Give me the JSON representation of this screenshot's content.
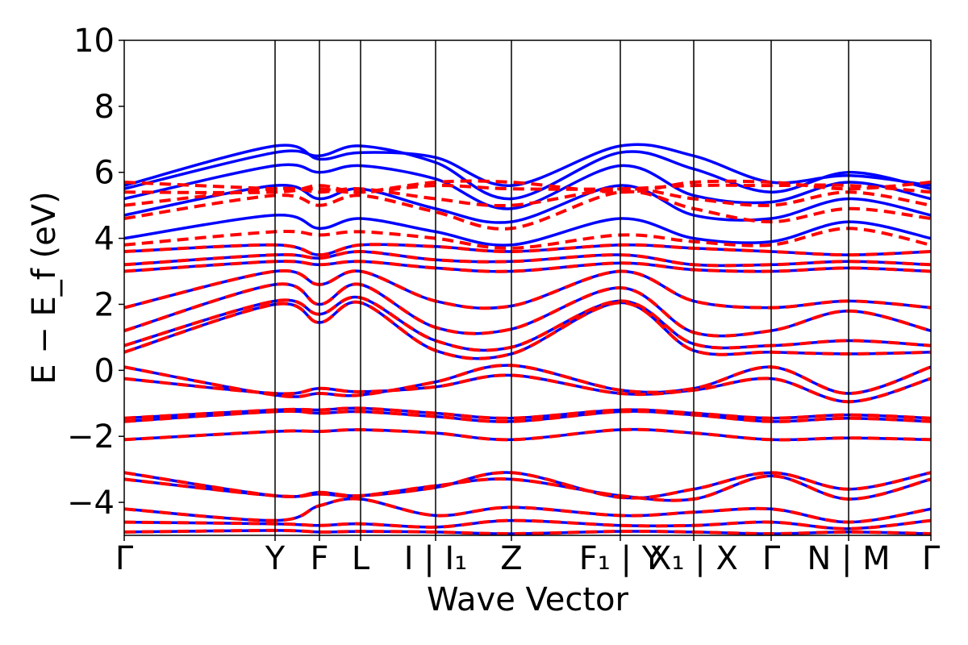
{
  "chart_data": {
    "type": "line",
    "title": "",
    "xlabel": "Wave Vector",
    "ylabel": "E − E_f (eV)",
    "ylim": [
      -5,
      10
    ],
    "grid": false,
    "legend": "none",
    "y_ticks": [
      {
        "value": 10,
        "label": "10"
      },
      {
        "value": 8,
        "label": "8"
      },
      {
        "value": 6,
        "label": "6"
      },
      {
        "value": 4,
        "label": "4"
      },
      {
        "value": 2,
        "label": "2"
      },
      {
        "value": 0,
        "label": "0"
      },
      {
        "value": -2,
        "label": "−2"
      },
      {
        "value": -4,
        "label": "−4"
      }
    ],
    "k_path": [
      {
        "k": 0.0,
        "label": "Γ"
      },
      {
        "k": 1.87,
        "label": "Y"
      },
      {
        "k": 2.42,
        "label": "F"
      },
      {
        "k": 2.93,
        "label": "L"
      },
      {
        "k": 3.86,
        "label": "I | I₁"
      },
      {
        "k": 4.8,
        "label": "Z"
      },
      {
        "k": 6.15,
        "label": "F₁ | Y"
      },
      {
        "k": 7.06,
        "label": "X₁ | X"
      },
      {
        "k": 8.02,
        "label": "Γ"
      },
      {
        "k": 8.98,
        "label": "N | M"
      },
      {
        "k": 10.0,
        "label": "Γ"
      }
    ],
    "colors": {
      "reference": "#0000ff",
      "model": "#ff0000",
      "axis": "#000000"
    },
    "series": [
      {
        "style": "solid",
        "color": "#0000ff",
        "bands": [
          [
            -4.9,
            -4.85,
            -4.9,
            -4.88,
            -4.9,
            -4.95,
            -4.88,
            -4.9,
            -4.95,
            -4.9,
            -4.95
          ],
          [
            -4.6,
            -4.65,
            -4.7,
            -4.65,
            -4.75,
            -4.55,
            -4.7,
            -4.7,
            -4.6,
            -4.8,
            -4.55
          ],
          [
            -4.2,
            -4.55,
            -4.1,
            -3.9,
            -4.4,
            -4.15,
            -4.4,
            -4.3,
            -4.2,
            -4.6,
            -4.2
          ],
          [
            -3.3,
            -3.8,
            -3.75,
            -3.8,
            -3.5,
            -3.3,
            -3.8,
            -3.9,
            -3.2,
            -3.9,
            -3.3
          ],
          [
            -3.1,
            -3.8,
            -3.7,
            -3.8,
            -3.55,
            -3.1,
            -3.85,
            -3.6,
            -3.1,
            -3.6,
            -3.1
          ],
          [
            -2.1,
            -1.85,
            -1.85,
            -1.8,
            -1.9,
            -2.1,
            -1.8,
            -1.9,
            -2.1,
            -2.05,
            -2.1
          ],
          [
            -1.55,
            -1.25,
            -1.3,
            -1.25,
            -1.4,
            -1.55,
            -1.25,
            -1.35,
            -1.55,
            -1.45,
            -1.55
          ],
          [
            -1.45,
            -1.2,
            -1.2,
            -1.15,
            -1.3,
            -1.45,
            -1.2,
            -1.3,
            -1.45,
            -1.35,
            -1.45
          ],
          [
            -0.25,
            -0.7,
            -0.55,
            -0.65,
            -0.5,
            -0.15,
            -0.7,
            -0.6,
            -0.25,
            -0.95,
            -0.25
          ],
          [
            0.1,
            -0.75,
            -0.7,
            -0.75,
            -0.35,
            0.15,
            -0.6,
            -0.55,
            0.1,
            -0.7,
            0.1
          ],
          [
            0.55,
            2.0,
            1.45,
            2.05,
            0.6,
            0.5,
            2.05,
            0.6,
            0.55,
            0.5,
            0.55
          ],
          [
            0.75,
            2.1,
            1.7,
            2.2,
            0.9,
            0.7,
            2.1,
            0.8,
            0.75,
            0.9,
            0.75
          ],
          [
            1.2,
            2.6,
            2.0,
            2.6,
            1.3,
            1.25,
            2.5,
            1.15,
            1.2,
            1.8,
            1.2
          ],
          [
            1.9,
            3.0,
            2.6,
            3.0,
            2.1,
            1.95,
            3.0,
            2.1,
            1.9,
            2.1,
            1.9
          ],
          [
            3.0,
            3.3,
            3.2,
            3.3,
            3.1,
            3.0,
            3.25,
            3.05,
            3.0,
            3.1,
            3.0
          ],
          [
            3.2,
            3.5,
            3.4,
            3.6,
            3.35,
            3.3,
            3.5,
            3.2,
            3.2,
            3.3,
            3.2
          ],
          [
            3.6,
            3.8,
            3.5,
            3.8,
            3.75,
            3.6,
            3.8,
            3.7,
            3.6,
            3.5,
            3.6
          ],
          [
            4.0,
            4.7,
            4.3,
            4.6,
            4.2,
            3.8,
            4.6,
            4.0,
            3.9,
            4.5,
            4.0
          ],
          [
            4.7,
            5.6,
            5.2,
            5.5,
            4.9,
            4.5,
            5.6,
            4.7,
            4.6,
            5.2,
            4.7
          ],
          [
            5.2,
            6.2,
            6.0,
            6.2,
            5.8,
            4.9,
            6.2,
            5.3,
            5.1,
            5.7,
            5.2
          ],
          [
            5.5,
            6.6,
            6.5,
            6.8,
            6.3,
            5.2,
            6.6,
            6.1,
            5.4,
            6.0,
            5.5
          ],
          [
            5.6,
            6.8,
            6.4,
            6.6,
            6.45,
            5.6,
            6.8,
            6.5,
            5.7,
            5.9,
            5.6
          ]
        ]
      },
      {
        "style": "dashed",
        "color": "#ff0000",
        "bands": [
          [
            -4.9,
            -4.85,
            -4.9,
            -4.88,
            -4.9,
            -4.95,
            -4.88,
            -4.9,
            -4.95,
            -4.9,
            -4.95
          ],
          [
            -4.6,
            -4.65,
            -4.7,
            -4.65,
            -4.75,
            -4.55,
            -4.7,
            -4.7,
            -4.6,
            -4.8,
            -4.55
          ],
          [
            -4.2,
            -4.55,
            -4.1,
            -3.9,
            -4.4,
            -4.15,
            -4.4,
            -4.3,
            -4.2,
            -4.6,
            -4.2
          ],
          [
            -3.3,
            -3.8,
            -3.75,
            -3.8,
            -3.5,
            -3.3,
            -3.8,
            -3.9,
            -3.2,
            -3.9,
            -3.3
          ],
          [
            -3.1,
            -3.8,
            -3.7,
            -3.8,
            -3.55,
            -3.1,
            -3.85,
            -3.6,
            -3.1,
            -3.6,
            -3.1
          ],
          [
            -2.1,
            -1.85,
            -1.85,
            -1.8,
            -1.9,
            -2.1,
            -1.8,
            -1.9,
            -2.1,
            -2.05,
            -2.1
          ],
          [
            -1.55,
            -1.25,
            -1.3,
            -1.25,
            -1.4,
            -1.55,
            -1.25,
            -1.35,
            -1.55,
            -1.45,
            -1.55
          ],
          [
            -1.45,
            -1.2,
            -1.2,
            -1.15,
            -1.3,
            -1.45,
            -1.2,
            -1.3,
            -1.45,
            -1.35,
            -1.45
          ],
          [
            -0.25,
            -0.7,
            -0.55,
            -0.65,
            -0.5,
            -0.15,
            -0.7,
            -0.6,
            -0.25,
            -0.95,
            -0.25
          ],
          [
            0.1,
            -0.75,
            -0.7,
            -0.75,
            -0.35,
            0.15,
            -0.6,
            -0.55,
            0.1,
            -0.7,
            0.1
          ],
          [
            0.55,
            2.0,
            1.45,
            2.05,
            0.6,
            0.5,
            2.05,
            0.6,
            0.55,
            0.5,
            0.55
          ],
          [
            0.75,
            2.1,
            1.7,
            2.2,
            0.9,
            0.7,
            2.1,
            0.8,
            0.75,
            0.9,
            0.75
          ],
          [
            1.2,
            2.6,
            2.0,
            2.6,
            1.3,
            1.25,
            2.5,
            1.15,
            1.2,
            1.8,
            1.2
          ],
          [
            1.9,
            3.0,
            2.6,
            3.0,
            2.1,
            1.95,
            3.0,
            2.1,
            1.9,
            2.1,
            1.9
          ],
          [
            3.0,
            3.3,
            3.2,
            3.3,
            3.1,
            3.0,
            3.25,
            3.05,
            3.0,
            3.1,
            3.0
          ],
          [
            3.2,
            3.5,
            3.4,
            3.6,
            3.35,
            3.3,
            3.5,
            3.2,
            3.2,
            3.3,
            3.2
          ],
          [
            3.6,
            3.8,
            3.5,
            3.8,
            3.75,
            3.6,
            3.8,
            3.7,
            3.6,
            3.5,
            3.6
          ],
          [
            3.8,
            4.2,
            4.1,
            4.2,
            4.0,
            3.7,
            4.1,
            3.9,
            3.8,
            4.3,
            3.8
          ],
          [
            4.6,
            5.3,
            5.0,
            5.3,
            4.8,
            4.3,
            5.4,
            4.9,
            4.5,
            4.9,
            4.6
          ],
          [
            5.0,
            5.5,
            5.4,
            5.5,
            5.2,
            5.0,
            5.5,
            5.2,
            5.0,
            5.4,
            5.0
          ],
          [
            5.4,
            5.4,
            5.6,
            5.4,
            5.6,
            5.5,
            5.5,
            5.6,
            5.6,
            5.6,
            5.4
          ],
          [
            5.7,
            5.5,
            5.5,
            5.4,
            5.7,
            5.7,
            5.4,
            5.7,
            5.7,
            5.5,
            5.7
          ]
        ]
      }
    ]
  }
}
